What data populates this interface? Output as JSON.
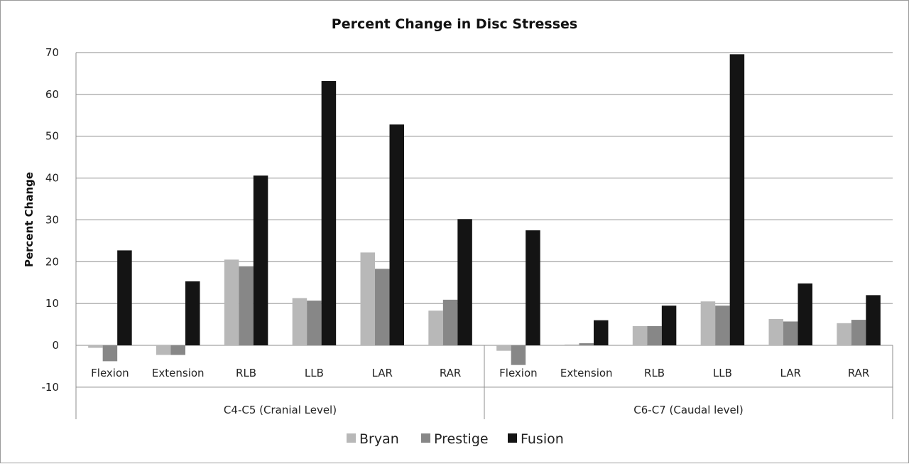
{
  "chart_data": {
    "type": "bar",
    "title": "Percent Change in Disc Stresses",
    "ylabel": "Percent Change",
    "xlabel": "",
    "ylim": [
      -10,
      70
    ],
    "yticks": [
      -10,
      0,
      10,
      20,
      30,
      40,
      50,
      60,
      70
    ],
    "grid": true,
    "legend_position": "bottom",
    "groups": [
      {
        "label": "C4-C5 (Cranial Level)",
        "categories": [
          "Flexion",
          "Extension",
          "RLB",
          "LLB",
          "LAR",
          "RAR"
        ]
      },
      {
        "label": "C6-C7 (Caudal level)",
        "categories": [
          "Flexion",
          "Extension",
          "RLB",
          "LLB",
          "LAR",
          "RAR"
        ]
      }
    ],
    "series": [
      {
        "name": "Bryan",
        "color": "#b8b8b8",
        "values": [
          -0.6,
          -2.3,
          20.5,
          11.3,
          22.2,
          8.3,
          -1.3,
          0.2,
          4.6,
          10.5,
          6.3,
          5.3
        ]
      },
      {
        "name": "Prestige",
        "color": "#878787",
        "values": [
          -3.8,
          -2.3,
          18.9,
          10.7,
          18.3,
          10.9,
          -4.7,
          0.5,
          4.6,
          9.5,
          5.7,
          6.1
        ]
      },
      {
        "name": "Fusion",
        "color": "#141414",
        "values": [
          22.7,
          15.3,
          40.6,
          63.2,
          52.8,
          30.2,
          27.5,
          6.0,
          9.5,
          69.6,
          14.8,
          12.0
        ]
      }
    ]
  }
}
